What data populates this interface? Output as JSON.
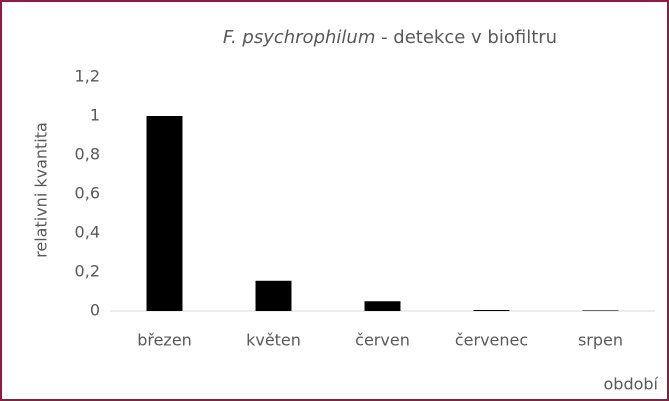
{
  "chart_data": {
    "type": "bar",
    "title": {
      "italic": "F. psychrophilum",
      "text": " - detekce v biofiltru"
    },
    "y_label": "relativni kvantita",
    "x_label": "období",
    "categories": [
      "březen",
      "květen",
      "červen",
      "červenec",
      "srpen"
    ],
    "values": [
      1.0,
      0.155,
      0.05,
      0.005,
      0.003
    ],
    "color": "#000000",
    "ylim": [
      0,
      1.2
    ],
    "yticks": [
      0,
      {
        "value": 0.2,
        "label": "0,2"
      },
      {
        "value": 0.4,
        "label": "0,4"
      },
      {
        "value": 0.6,
        "label": "0,6"
      },
      {
        "value": 0.8,
        "label": "0,8"
      },
      1,
      {
        "value": 1.2,
        "label": "1,2"
      }
    ],
    "grid": false
  }
}
